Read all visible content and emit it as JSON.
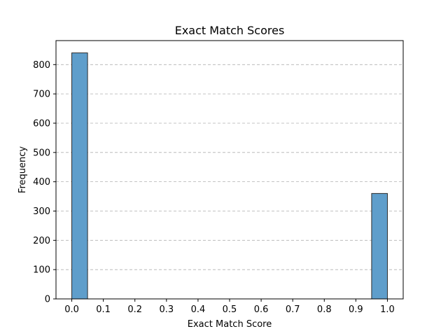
{
  "chart_data": {
    "type": "bar",
    "title": "Exact Match Scores",
    "xlabel": "Exact Match Score",
    "ylabel": "Frequency",
    "xlim": [
      -0.05,
      1.05
    ],
    "ylim": [
      0,
      882
    ],
    "x_ticks": [
      0.0,
      0.1,
      0.2,
      0.3,
      0.4,
      0.5,
      0.6,
      0.7,
      0.8,
      0.9,
      1.0
    ],
    "x_tick_labels": [
      "0.0",
      "0.1",
      "0.2",
      "0.3",
      "0.4",
      "0.5",
      "0.6",
      "0.7",
      "0.8",
      "0.9",
      "1.0"
    ],
    "y_ticks": [
      0,
      100,
      200,
      300,
      400,
      500,
      600,
      700,
      800
    ],
    "y_tick_labels": [
      "0",
      "100",
      "200",
      "300",
      "400",
      "500",
      "600",
      "700",
      "800"
    ],
    "grid": "y-dashed",
    "bins": [
      {
        "x0": 0.0,
        "x1": 0.05,
        "value": 840
      },
      {
        "x0": 0.95,
        "x1": 1.0,
        "value": 360
      }
    ],
    "colors": {
      "bar_fill": "#5f9ecb",
      "bar_edge": "#2b2b2b",
      "grid": "#b0b0b0"
    }
  }
}
